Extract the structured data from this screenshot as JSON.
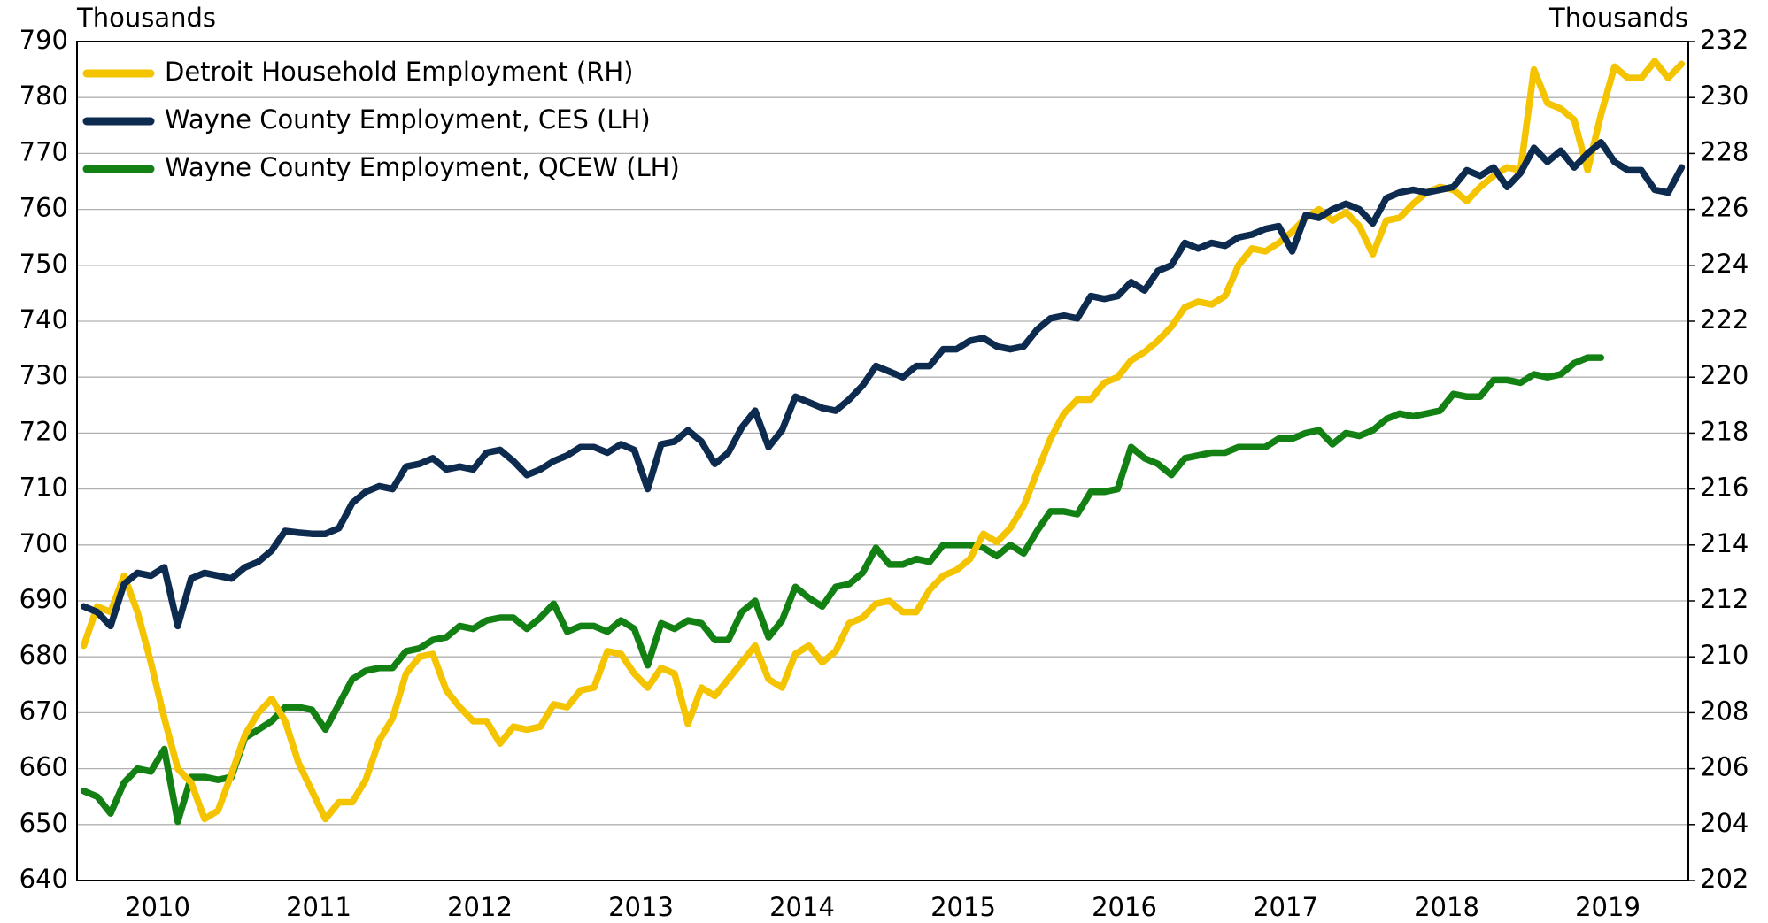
{
  "chart_data": {
    "type": "line",
    "ylabel": "Thousands",
    "y2label": "Thousands",
    "x": [
      0,
      1,
      2,
      3,
      4,
      5,
      6,
      7,
      8,
      9,
      10,
      11,
      12,
      13,
      14,
      15,
      16,
      17,
      18,
      19,
      20,
      21,
      22,
      23,
      24,
      25,
      26,
      27,
      28,
      29,
      30,
      31,
      32,
      33,
      34,
      35,
      36,
      37,
      38,
      39,
      40,
      41,
      42,
      43,
      44,
      45,
      46,
      47,
      48,
      49,
      50,
      51,
      52,
      53,
      54,
      55,
      56,
      57,
      58,
      59,
      60,
      61,
      62,
      63,
      64,
      65,
      66,
      67,
      68,
      69,
      70,
      71,
      72,
      73,
      74,
      75,
      76,
      77,
      78,
      79,
      80,
      81,
      82,
      83,
      84,
      85,
      86,
      87,
      88,
      89,
      90,
      91,
      92,
      93,
      94,
      95,
      96,
      97,
      98,
      99,
      100,
      101,
      102,
      103,
      104,
      105,
      106,
      107,
      108,
      109,
      110,
      111,
      112,
      113,
      114,
      115,
      116,
      117,
      118,
      119
    ],
    "xlim": [
      -0.5,
      119.5
    ],
    "xticks": [
      {
        "value": 5.5,
        "label": "2010"
      },
      {
        "value": 17.5,
        "label": "2011"
      },
      {
        "value": 29.5,
        "label": "2012"
      },
      {
        "value": 41.5,
        "label": "2013"
      },
      {
        "value": 53.5,
        "label": "2014"
      },
      {
        "value": 65.5,
        "label": "2015"
      },
      {
        "value": 77.5,
        "label": "2016"
      },
      {
        "value": 89.5,
        "label": "2017"
      },
      {
        "value": 101.5,
        "label": "2018"
      },
      {
        "value": 113.5,
        "label": "2019"
      }
    ],
    "ylim": [
      640,
      790
    ],
    "yticks": [
      640,
      650,
      660,
      670,
      680,
      690,
      700,
      710,
      720,
      730,
      740,
      750,
      760,
      770,
      780,
      790
    ],
    "y2lim": [
      202,
      232
    ],
    "y2ticks": [
      202,
      204,
      206,
      208,
      210,
      212,
      214,
      216,
      218,
      220,
      222,
      224,
      226,
      228,
      230,
      232
    ],
    "grid": true,
    "legend": "upper left",
    "series": [
      {
        "name": "Detroit Household Employment (RH)",
        "color": "#f5c400",
        "axis": "y2",
        "values": [
          210.4,
          211.8,
          211.6,
          212.9,
          211.6,
          209.8,
          207.8,
          206,
          205.5,
          204.2,
          204.5,
          205.8,
          207.2,
          208,
          208.5,
          207.7,
          206.2,
          205.2,
          204.2,
          204.8,
          204.8,
          205.6,
          207,
          207.8,
          209.4,
          210,
          210.1,
          208.8,
          208.2,
          207.7,
          207.7,
          206.9,
          207.5,
          207.4,
          207.5,
          208.3,
          208.2,
          208.8,
          208.9,
          210.2,
          210.1,
          209.4,
          208.9,
          209.6,
          209.4,
          207.6,
          208.9,
          208.6,
          209.2,
          209.8,
          210.4,
          209.2,
          208.9,
          210.1,
          210.4,
          209.8,
          210.2,
          211.2,
          211.4,
          211.9,
          212,
          211.6,
          211.6,
          212.4,
          212.9,
          213.1,
          213.5,
          214.4,
          214.1,
          214.6,
          215.4,
          216.6,
          217.8,
          218.7,
          219.2,
          219.2,
          219.8,
          220,
          220.6,
          220.9,
          221.3,
          221.8,
          222.5,
          222.7,
          222.6,
          222.9,
          224,
          224.6,
          224.5,
          224.8,
          225.2,
          225.7,
          226,
          225.6,
          225.9,
          225.4,
          224.4,
          225.6,
          225.7,
          226.2,
          226.6,
          226.8,
          226.7,
          226.3,
          226.8,
          227.2,
          227.5,
          227.4,
          231,
          229.8,
          229.6,
          229.2,
          227.4,
          229.4,
          231.1,
          230.7,
          230.7,
          231.3,
          230.7,
          231.2
        ]
      },
      {
        "name": "Wayne County Employment, CES (LH)",
        "color": "#0d2a4f",
        "values": [
          689,
          688,
          685.5,
          693,
          695,
          694.5,
          696,
          685.5,
          694,
          695,
          694.5,
          694,
          696,
          697,
          699,
          702.5,
          702.2,
          702,
          702,
          703,
          707.5,
          709.5,
          710.5,
          710,
          714,
          714.5,
          715.5,
          713.5,
          714,
          713.5,
          716.5,
          717,
          715,
          712.5,
          713.5,
          715,
          716,
          717.5,
          717.5,
          716.5,
          718,
          717,
          710,
          718,
          718.5,
          720.5,
          718.5,
          714.5,
          716.5,
          721,
          724,
          717.5,
          720.5,
          726.5,
          725.5,
          724.5,
          724,
          726,
          728.5,
          732,
          731,
          730,
          732,
          732,
          735,
          735,
          736.5,
          737,
          735.5,
          735,
          735.5,
          738.5,
          740.5,
          741,
          740.5,
          744.5,
          744,
          744.5,
          747,
          745.5,
          749,
          750,
          754,
          753,
          754,
          753.5,
          755,
          755.5,
          756.5,
          757,
          752.5,
          759,
          758.5,
          760,
          761,
          760,
          757.5,
          762,
          763,
          763.5,
          763,
          763.5,
          764,
          767,
          766,
          767.5,
          764,
          766.5,
          771,
          768.5,
          770.5,
          767.5,
          770,
          772,
          768.5,
          767,
          767,
          763.5,
          763,
          767.5
        ]
      },
      {
        "name": "Wayne County Employment, QCEW (LH)",
        "color": "#138013",
        "values": [
          656,
          655,
          652,
          657.5,
          660,
          659.5,
          663.5,
          650.5,
          658.5,
          658.5,
          658,
          658.5,
          665.5,
          667,
          668.5,
          671,
          671,
          670.5,
          667,
          671.5,
          676,
          677.5,
          678,
          678,
          681,
          681.5,
          683,
          683.5,
          685.5,
          685,
          686.5,
          687,
          687,
          685,
          687,
          689.5,
          684.5,
          685.5,
          685.5,
          684.5,
          686.5,
          685,
          678.5,
          686,
          685,
          686.5,
          686,
          683,
          683,
          688,
          690,
          683.5,
          686.5,
          692.5,
          690.5,
          689,
          692.5,
          693,
          695,
          699.5,
          696.5,
          696.5,
          697.5,
          697,
          700,
          700,
          700,
          699.5,
          698,
          700,
          698.5,
          702.5,
          706,
          706,
          705.5,
          709.5,
          709.5,
          710,
          717.5,
          715.5,
          714.5,
          712.5,
          715.5,
          716,
          716.5,
          716.5,
          717.5,
          717.5,
          717.5,
          719,
          719,
          720,
          720.5,
          718,
          720,
          719.5,
          720.5,
          722.5,
          723.5,
          723,
          723.5,
          724,
          727,
          726.5,
          726.5,
          729.5,
          729.5,
          729,
          730.5,
          730,
          730.5,
          732.5,
          733.5,
          733.5,
          null,
          null,
          null,
          null,
          null,
          null
        ]
      }
    ]
  }
}
